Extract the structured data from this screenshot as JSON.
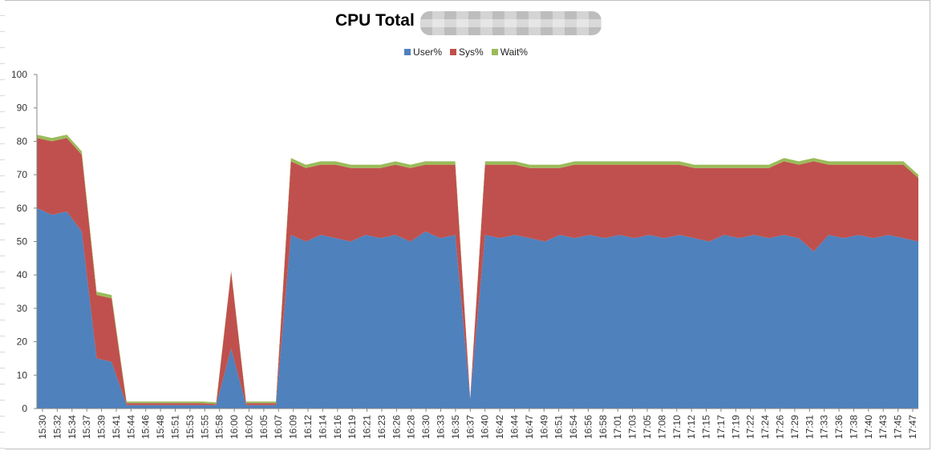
{
  "chart_data": {
    "type": "area",
    "stacked": true,
    "title": "CPU Total",
    "title_redacted": true,
    "ylim": [
      0,
      100
    ],
    "y_ticks": [
      0,
      10,
      20,
      30,
      40,
      50,
      60,
      70,
      80,
      90,
      100
    ],
    "x_tick_labels": [
      "15:30",
      "15:32",
      "15:34",
      "15:37",
      "15:39",
      "15:41",
      "15:44",
      "15:46",
      "15:48",
      "15:51",
      "15:53",
      "15:55",
      "15:58",
      "16:00",
      "16:02",
      "16:05",
      "16:07",
      "16:09",
      "16:12",
      "16:14",
      "16:16",
      "16:19",
      "16:21",
      "16:23",
      "16:26",
      "16:28",
      "16:30",
      "16:33",
      "16:35",
      "16:37",
      "16:40",
      "16:42",
      "16:44",
      "16:47",
      "16:49",
      "16:51",
      "16:54",
      "16:56",
      "16:58",
      "17:01",
      "17:03",
      "17:05",
      "17:08",
      "17:10",
      "17:12",
      "17:15",
      "17:17",
      "17:19",
      "17:22",
      "17:24",
      "17:26",
      "17:29",
      "17:31",
      "17:33",
      "17:36",
      "17:38",
      "17:40",
      "17:43",
      "17:45",
      "17:47"
    ],
    "grid": false,
    "legend_position": "top",
    "series": [
      {
        "name": "User%",
        "color": "#4F81BD",
        "values": [
          60,
          58,
          59,
          53,
          15,
          14,
          1,
          1,
          1,
          1,
          1,
          1,
          1,
          18,
          1,
          1,
          1,
          52,
          50,
          52,
          51,
          50,
          52,
          51,
          52,
          50,
          53,
          51,
          52,
          3,
          52,
          51,
          52,
          51,
          50,
          52,
          51,
          52,
          51,
          52,
          51,
          52,
          51,
          52,
          51,
          50,
          52,
          51,
          52,
          51,
          52,
          51,
          47,
          52,
          51,
          52,
          51,
          52,
          51,
          50
        ]
      },
      {
        "name": "Sys%",
        "color": "#C0504D",
        "values": [
          21,
          22,
          22,
          23,
          19,
          19,
          0.6,
          0.6,
          0.6,
          0.6,
          0.6,
          0.6,
          0.4,
          23,
          0.6,
          0.6,
          0.6,
          22,
          22,
          21,
          22,
          22,
          20,
          21,
          21,
          22,
          20,
          22,
          21,
          0,
          21,
          22,
          21,
          21,
          22,
          20,
          22,
          21,
          22,
          21,
          22,
          21,
          22,
          21,
          21,
          22,
          20,
          21,
          20,
          21,
          22,
          22,
          27,
          21,
          22,
          21,
          22,
          21,
          22,
          19
        ]
      },
      {
        "name": "Wait%",
        "color": "#9BBB59",
        "values": [
          1,
          1,
          1,
          1,
          1,
          1,
          0.5,
          0.5,
          0.5,
          0.5,
          0.5,
          0.5,
          0.5,
          0.3,
          0.5,
          0.5,
          0.5,
          1,
          1,
          1,
          1,
          1,
          1,
          1,
          1,
          1,
          1,
          1,
          1,
          0,
          1,
          1,
          1,
          1,
          1,
          1,
          1,
          1,
          1,
          1,
          1,
          1,
          1,
          1,
          1,
          1,
          1,
          1,
          1,
          1,
          1,
          1,
          1,
          1,
          1,
          1,
          1,
          1,
          1,
          1
        ]
      }
    ]
  },
  "colors": {
    "axis": "#868686",
    "text": "#333333"
  }
}
